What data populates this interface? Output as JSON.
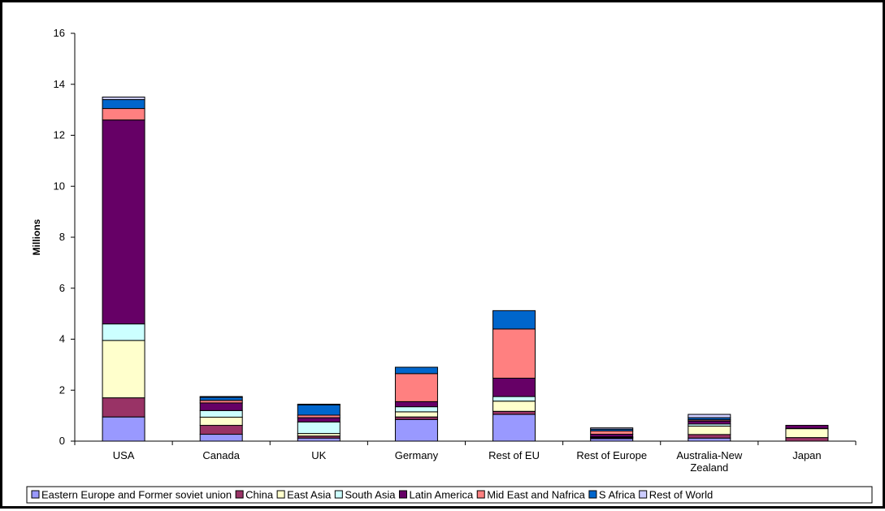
{
  "chart_data": {
    "type": "bar",
    "stacked": true,
    "title": "",
    "xlabel": "",
    "ylabel": "Millions",
    "ylim": [
      0,
      16
    ],
    "yticks": [
      0,
      2,
      4,
      6,
      8,
      10,
      12,
      14,
      16
    ],
    "grid": false,
    "legend_position": "bottom",
    "categories": [
      "USA",
      "Canada",
      "UK",
      "Germany",
      "Rest of EU",
      "Rest of Europe",
      "Australia-New Zealand",
      "Japan"
    ],
    "series": [
      {
        "name": "Eastern Europe and Former soviet union",
        "color": "#9999ff",
        "values": [
          0.95,
          0.27,
          0.12,
          0.85,
          1.05,
          0.1,
          0.12,
          0.0
        ]
      },
      {
        "name": "China",
        "color": "#993366",
        "values": [
          0.75,
          0.35,
          0.08,
          0.1,
          0.12,
          0.03,
          0.14,
          0.14
        ]
      },
      {
        "name": "East Asia",
        "color": "#ffffcc",
        "values": [
          2.25,
          0.32,
          0.1,
          0.2,
          0.4,
          0.02,
          0.33,
          0.35
        ]
      },
      {
        "name": "South Asia",
        "color": "#ccffff",
        "values": [
          0.65,
          0.26,
          0.45,
          0.2,
          0.18,
          0.02,
          0.08,
          0.01
        ]
      },
      {
        "name": "Latin America",
        "color": "#660066",
        "values": [
          8.0,
          0.3,
          0.17,
          0.2,
          0.72,
          0.1,
          0.12,
          0.12
        ]
      },
      {
        "name": "Mid East and Nafrica",
        "color": "#ff8080",
        "values": [
          0.45,
          0.1,
          0.1,
          1.1,
          1.93,
          0.13,
          0.05,
          0.0
        ]
      },
      {
        "name": "S Africa",
        "color": "#0066cc",
        "values": [
          0.35,
          0.12,
          0.4,
          0.25,
          0.72,
          0.07,
          0.08,
          0.0
        ]
      },
      {
        "name": "Rest of World",
        "color": "#ccccff",
        "values": [
          0.1,
          0.03,
          0.03,
          0.0,
          0.0,
          0.05,
          0.13,
          0.0
        ]
      }
    ]
  }
}
